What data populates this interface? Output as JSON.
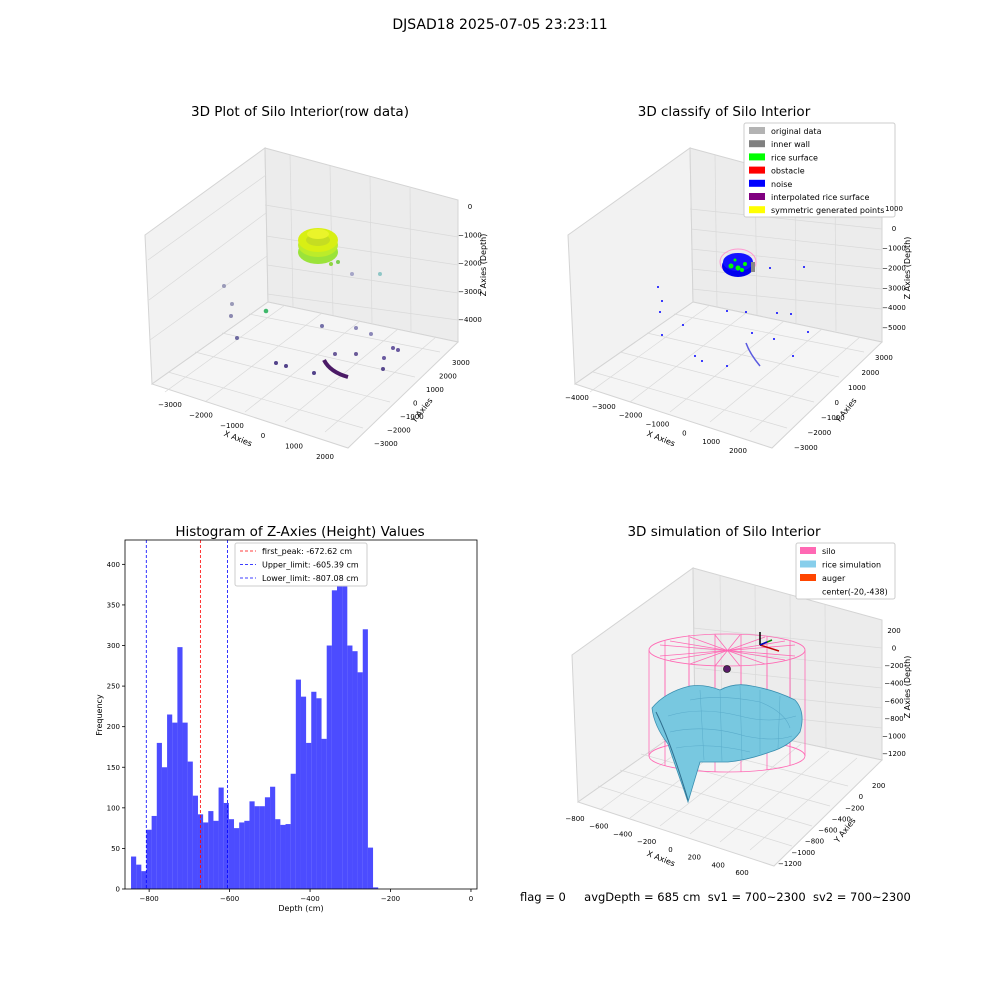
{
  "suptitle": "DJSAD18 2025-07-05 23:23:11",
  "status": {
    "flag": "flag = 0",
    "avgDepth": "avgDepth = 685 cm",
    "sv1": "sv1 = 700~2300",
    "sv2": "sv2 = 700~2300"
  },
  "panels": {
    "raw": {
      "title": "3D Plot of Silo Interior(row data)",
      "xlabel": "X Axies",
      "ylabel": "Y Axies",
      "zlabel": "Z Axies (Depth)",
      "xticks": [
        "-3000",
        "-2000",
        "-1000",
        "0",
        "1000",
        "2000"
      ],
      "yticks": [
        "-3000",
        "-2000",
        "-1000",
        "0",
        "1000",
        "2000",
        "3000"
      ],
      "zticks": [
        "0",
        "-1000",
        "-2000",
        "-3000",
        "-4000"
      ]
    },
    "classify": {
      "title": "3D classify of Silo Interior",
      "xlabel": "X Axies",
      "ylabel": "Y Axies",
      "zlabel": "Z Axies (Depth)",
      "xticks": [
        "-4000",
        "-3000",
        "-2000",
        "-1000",
        "0",
        "1000",
        "2000"
      ],
      "yticks": [
        "-3000",
        "-2000",
        "-1000",
        "0",
        "1000",
        "2000",
        "3000"
      ],
      "zticks": [
        "1000",
        "0",
        "-1000",
        "-2000",
        "-3000",
        "-4000",
        "-5000"
      ],
      "legend": [
        {
          "label": "original data",
          "color": "#b3b3b3"
        },
        {
          "label": "inner wall",
          "color": "#808080"
        },
        {
          "label": "rice surface",
          "color": "#00ff00"
        },
        {
          "label": "obstacle",
          "color": "#ff0000"
        },
        {
          "label": "noise",
          "color": "#0000ff"
        },
        {
          "label": "interpolated rice surface",
          "color": "#800080"
        },
        {
          "label": "symmetric generated points",
          "color": "#ffff00"
        }
      ]
    },
    "simulation": {
      "title": "3D simulation of Silo Interior",
      "xlabel": "X Axies",
      "ylabel": "Y Axies",
      "zlabel": "Z Axies (Depth)",
      "xticks": [
        "-800",
        "-600",
        "-400",
        "-200",
        "0",
        "200",
        "400",
        "600"
      ],
      "yticks": [
        "-1200",
        "-1000",
        "-800",
        "-600",
        "-400",
        "-200",
        "0",
        "200"
      ],
      "zticks": [
        "200",
        "0",
        "-200",
        "-400",
        "-600",
        "-800",
        "-1000",
        "-1200"
      ],
      "legend": [
        {
          "label": "silo",
          "color": "#ff69b4"
        },
        {
          "label": "rice simulation",
          "color": "#87ceeb"
        },
        {
          "label": "auger",
          "color": "#ff4500"
        },
        {
          "label": "center(-20,-438)",
          "color": ""
        }
      ]
    }
  },
  "chart_data": {
    "type": "bar",
    "title": "Histogram of Z-Axies (Height) Values",
    "xlabel": "Depth (cm)",
    "ylabel": "Frequency",
    "xlim": [
      -860,
      15
    ],
    "ylim": [
      0,
      430
    ],
    "bin_start": -845,
    "bin_width": 12.8,
    "bar_color": "#0000ff",
    "x_ticks": [
      -800,
      -600,
      -400,
      -200,
      0
    ],
    "y_ticks": [
      0,
      50,
      100,
      150,
      200,
      250,
      300,
      350,
      400
    ],
    "values": [
      40,
      30,
      22,
      73,
      90,
      180,
      150,
      215,
      205,
      298,
      205,
      157,
      115,
      92,
      82,
      96,
      84,
      125,
      106,
      86,
      75,
      82,
      84,
      108,
      102,
      102,
      113,
      126,
      86,
      79,
      80,
      142,
      258,
      237,
      180,
      243,
      235,
      185,
      300,
      368,
      406,
      390,
      300,
      293,
      267,
      320,
      51,
      2
    ],
    "vlines": [
      {
        "label": "first_peak: -672.62 cm",
        "x": -672.62,
        "color": "#ff0000"
      },
      {
        "label": "Upper_limit: -605.39 cm",
        "x": -605.39,
        "color": "#0000ff"
      },
      {
        "label": "Lower_limit: -807.08 cm",
        "x": -807.08,
        "color": "#0000ff"
      }
    ]
  }
}
